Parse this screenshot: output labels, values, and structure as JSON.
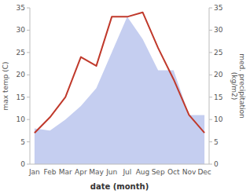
{
  "chart_data": {
    "type": "line",
    "x_label": "date (month)",
    "y_label": "max temp (C)",
    "y2_label": "med. precipitation\n(kg/m2)",
    "categories": [
      "Jan",
      "Feb",
      "Mar",
      "Apr",
      "May",
      "Jun",
      "Jul",
      "Aug",
      "Sep",
      "Oct",
      "Nov",
      "Dec"
    ],
    "series": [
      {
        "type": "area",
        "axis": "y2",
        "color": "#c5cef0",
        "values": [
          8,
          7.5,
          10,
          13,
          17,
          25,
          33,
          28,
          21,
          21,
          11,
          11
        ]
      },
      {
        "type": "line",
        "color": "#c0392b",
        "values": [
          7,
          10.5,
          15,
          24,
          22,
          33,
          33,
          34,
          26,
          19,
          11,
          7
        ]
      }
    ],
    "ylim": [
      0,
      35
    ],
    "yticks": [
      0,
      5,
      10,
      15,
      20,
      25,
      30,
      35
    ],
    "y2lim": [
      0,
      35
    ],
    "y2ticks": [
      0,
      5,
      10,
      15,
      20,
      25,
      30,
      35
    ],
    "grid": false
  }
}
